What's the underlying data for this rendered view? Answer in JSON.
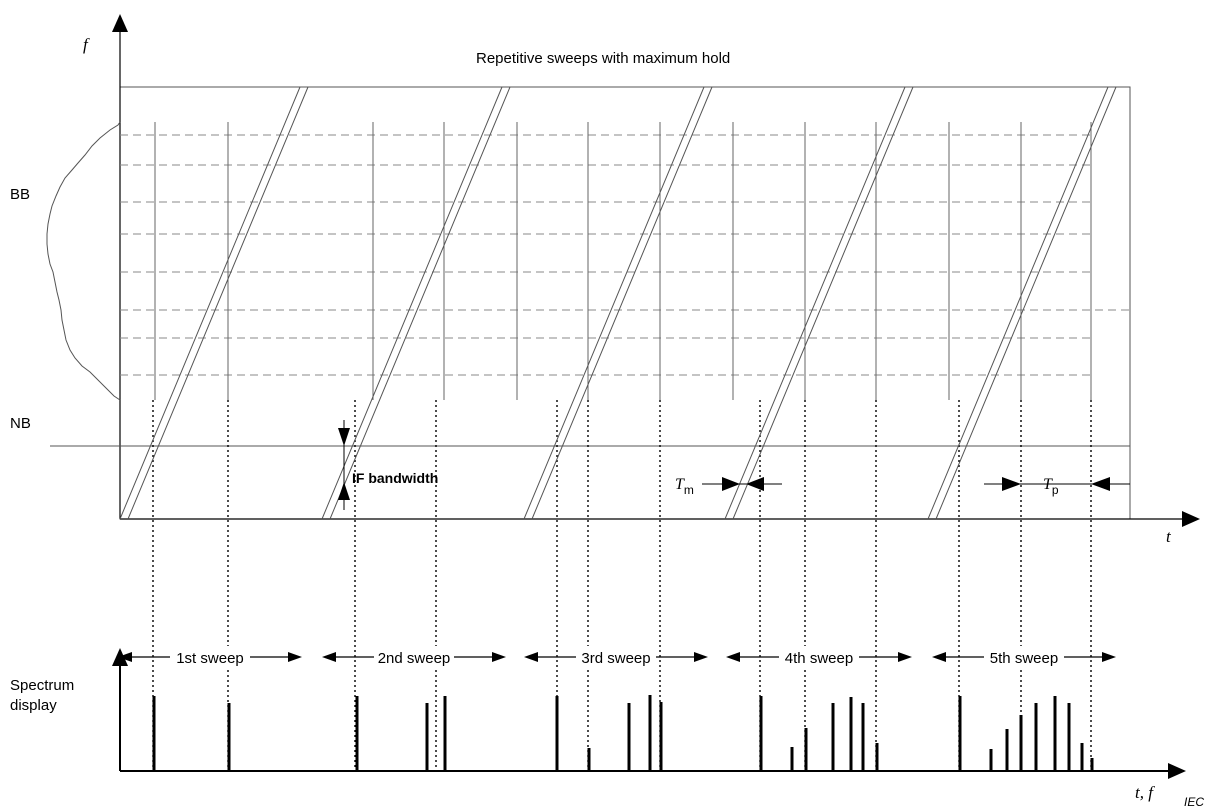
{
  "title": "Repetitive sweeps with maximum hold",
  "axes": {
    "f_label": "f",
    "t_label": "t",
    "bottom_label": "t, f",
    "bb_label": "BB",
    "nb_label": "NB",
    "spectrum_label_line1": "Spectrum",
    "spectrum_label_line2": "display",
    "iec_label": "IEC"
  },
  "annotations": {
    "if_bandwidth": "IF bandwidth",
    "tm_main": "T",
    "tm_sub": "m",
    "tp_main": "T",
    "tp_sub": "p"
  },
  "sweeps": [
    "1st sweep",
    "2nd sweep",
    "3rd sweep",
    "4th sweep",
    "5th sweep"
  ],
  "colors": {
    "ink": "#000000",
    "frame": "#555555",
    "dashed": "#888888"
  }
}
